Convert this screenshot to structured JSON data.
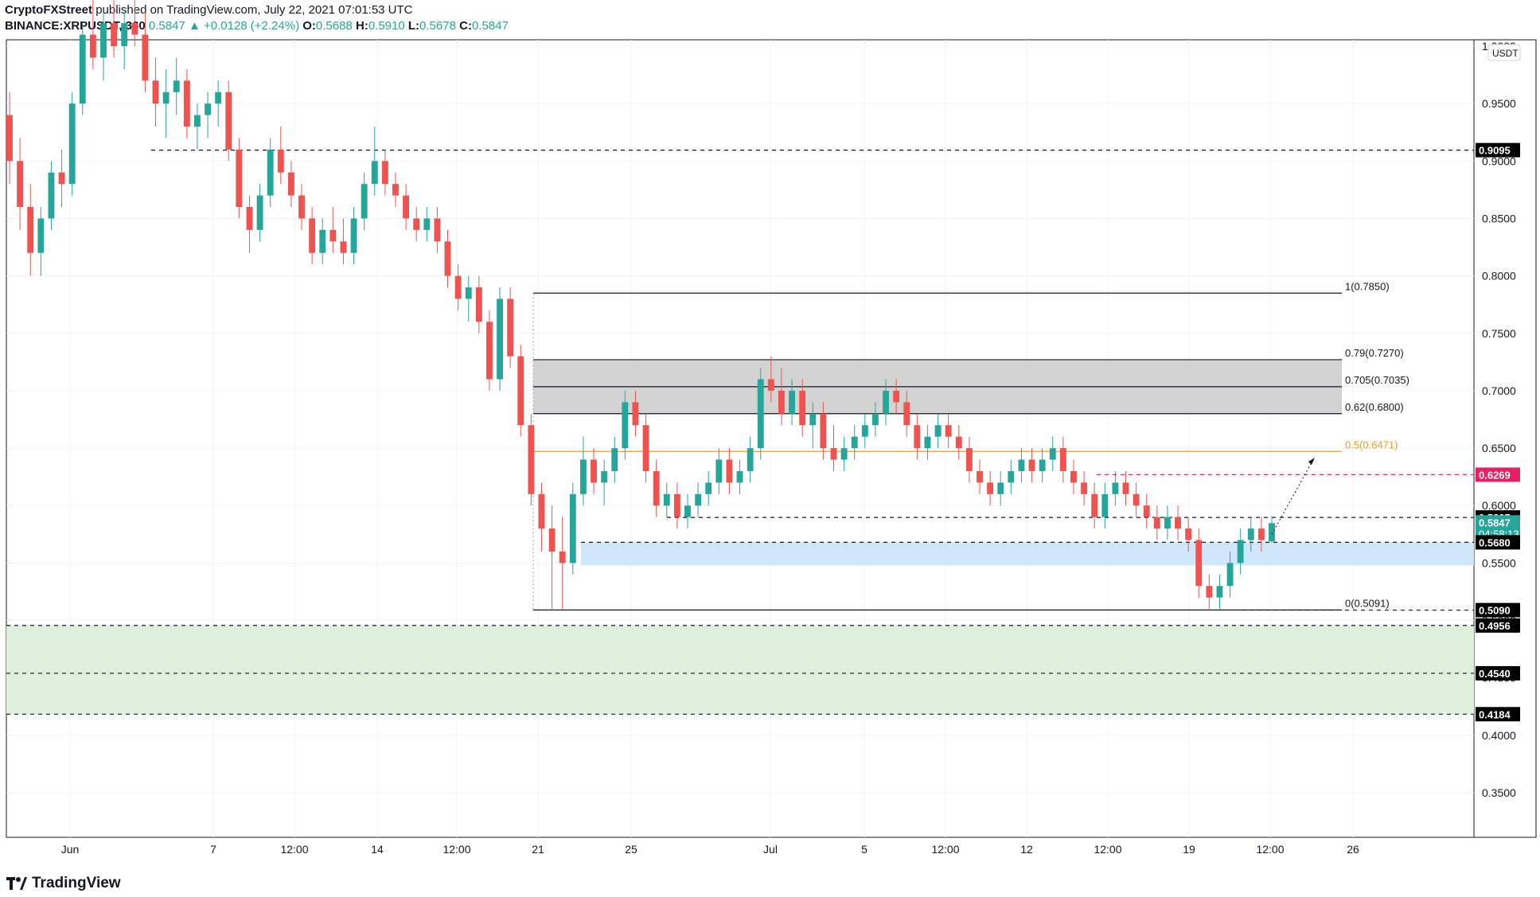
{
  "header": {
    "author": "CryptoFXStreet",
    "published": "published on TradingView.com, July 22, 2021 07:01:53 UTC",
    "symbol": "BINANCE:XRPUSDT, 360",
    "last": "0.5847",
    "change": "+0.0128 (+2.24%)",
    "o_label": "O:",
    "o_value": "0.5688",
    "h_label": "H:",
    "h_value": "0.5910",
    "l_label": "L:",
    "l_value": "0.5678",
    "c_label": "C:",
    "c_value": "0.5847"
  },
  "footer": {
    "brand": "TradingView"
  },
  "chart_data": {
    "type": "candlestick",
    "currency": "USDT",
    "ylim": [
      0.3,
      1.0
    ],
    "y_ticks": [
      "1.0000",
      "0.9500",
      "0.9000",
      "0.8500",
      "0.8000",
      "0.7500",
      "0.7000",
      "0.6500",
      "0.6000",
      "0.5500",
      "0.5000",
      "0.4500",
      "0.4000",
      "0.3500"
    ],
    "x_ticks": [
      "Jun",
      "7",
      "12:00",
      "14",
      "12:00",
      "21",
      "25",
      "Jul",
      "5",
      "12:00",
      "12",
      "12:00",
      "19",
      "12:00",
      "26"
    ],
    "fib_levels": [
      {
        "label": "1(0.7850)",
        "value": 0.785
      },
      {
        "label": "0.79(0.7270)",
        "value": 0.727
      },
      {
        "label": "0.705(0.7035)",
        "value": 0.7035
      },
      {
        "label": "0.62(0.6800)",
        "value": 0.68
      },
      {
        "label": "0.5(0.6471)",
        "value": 0.6471,
        "color": "#f59c1a"
      },
      {
        "label": "0(0.5091)",
        "value": 0.5091
      }
    ],
    "price_tags": [
      {
        "label": "0.9095",
        "value": 0.9095,
        "bg": "#000000"
      },
      {
        "label": "0.6269",
        "value": 0.6269,
        "bg": "#e91e63"
      },
      {
        "label": "0.5897",
        "value": 0.5897,
        "bg": "#000000"
      },
      {
        "label": "0.5847",
        "sub": "04:58:13",
        "value": 0.5847,
        "bg": "#26a69a"
      },
      {
        "label": "0.5680",
        "value": 0.568,
        "bg": "#000000"
      },
      {
        "label": "0.5090",
        "value": 0.509,
        "bg": "#000000"
      },
      {
        "label": "0.4956",
        "value": 0.4956,
        "bg": "#000000"
      },
      {
        "label": "0.4540",
        "value": 0.454,
        "bg": "#000000"
      },
      {
        "label": "0.4184",
        "value": 0.4184,
        "bg": "#000000"
      }
    ],
    "zones": [
      {
        "name": "resistance",
        "from": 0.68,
        "to": 0.727,
        "color": "#d3d3d3"
      },
      {
        "name": "demand",
        "from": 0.548,
        "to": 0.568,
        "color": "#cfe6fb"
      },
      {
        "name": "support",
        "from": 0.4184,
        "to": 0.4956,
        "color": "#dff0da"
      }
    ],
    "dashed_levels": [
      0.9095,
      0.6269,
      0.5897,
      0.568,
      0.509,
      0.4956,
      0.454,
      0.4184
    ],
    "colors": {
      "up": "#26a69a",
      "down": "#ef5350",
      "fib": "#131722",
      "fib_mid": "#f59c1a",
      "tag_dark": "#000000",
      "tag_red": "#e91e63",
      "tag_green": "#26a69a"
    },
    "candles": [
      [
        0.94,
        0.96,
        0.88,
        0.9
      ],
      [
        0.9,
        0.92,
        0.84,
        0.86
      ],
      [
        0.86,
        0.88,
        0.8,
        0.82
      ],
      [
        0.82,
        0.86,
        0.8,
        0.85
      ],
      [
        0.85,
        0.9,
        0.84,
        0.89
      ],
      [
        0.89,
        0.91,
        0.86,
        0.88
      ],
      [
        0.88,
        0.96,
        0.87,
        0.95
      ],
      [
        0.95,
        1.02,
        0.94,
        1.01
      ],
      [
        1.01,
        1.04,
        0.98,
        0.99
      ],
      [
        0.99,
        1.03,
        0.97,
        1.02
      ],
      [
        1.02,
        1.04,
        0.99,
        1.0
      ],
      [
        1.0,
        1.03,
        0.98,
        1.02
      ],
      [
        1.02,
        1.05,
        1.0,
        1.01
      ],
      [
        1.01,
        1.03,
        0.96,
        0.97
      ],
      [
        0.97,
        0.99,
        0.93,
        0.95
      ],
      [
        0.95,
        0.98,
        0.92,
        0.96
      ],
      [
        0.96,
        0.99,
        0.94,
        0.97
      ],
      [
        0.97,
        0.98,
        0.92,
        0.93
      ],
      [
        0.93,
        0.95,
        0.91,
        0.94
      ],
      [
        0.94,
        0.96,
        0.92,
        0.95
      ],
      [
        0.95,
        0.97,
        0.93,
        0.96
      ],
      [
        0.96,
        0.97,
        0.9,
        0.91
      ],
      [
        0.91,
        0.92,
        0.85,
        0.86
      ],
      [
        0.86,
        0.87,
        0.82,
        0.84
      ],
      [
        0.84,
        0.88,
        0.83,
        0.87
      ],
      [
        0.87,
        0.92,
        0.86,
        0.91
      ],
      [
        0.91,
        0.93,
        0.88,
        0.89
      ],
      [
        0.89,
        0.9,
        0.86,
        0.87
      ],
      [
        0.87,
        0.88,
        0.84,
        0.85
      ],
      [
        0.85,
        0.86,
        0.81,
        0.82
      ],
      [
        0.82,
        0.85,
        0.81,
        0.84
      ],
      [
        0.84,
        0.86,
        0.82,
        0.83
      ],
      [
        0.83,
        0.85,
        0.81,
        0.82
      ],
      [
        0.82,
        0.86,
        0.81,
        0.85
      ],
      [
        0.85,
        0.89,
        0.84,
        0.88
      ],
      [
        0.88,
        0.93,
        0.87,
        0.9
      ],
      [
        0.9,
        0.91,
        0.87,
        0.88
      ],
      [
        0.88,
        0.89,
        0.86,
        0.87
      ],
      [
        0.87,
        0.88,
        0.84,
        0.85
      ],
      [
        0.85,
        0.86,
        0.83,
        0.84
      ],
      [
        0.84,
        0.86,
        0.83,
        0.85
      ],
      [
        0.85,
        0.86,
        0.82,
        0.83
      ],
      [
        0.83,
        0.84,
        0.79,
        0.8
      ],
      [
        0.8,
        0.81,
        0.77,
        0.78
      ],
      [
        0.78,
        0.8,
        0.76,
        0.79
      ],
      [
        0.79,
        0.8,
        0.75,
        0.76
      ],
      [
        0.76,
        0.77,
        0.7,
        0.71
      ],
      [
        0.71,
        0.79,
        0.7,
        0.78
      ],
      [
        0.78,
        0.79,
        0.72,
        0.73
      ],
      [
        0.73,
        0.74,
        0.66,
        0.67
      ],
      [
        0.67,
        0.68,
        0.6,
        0.61
      ],
      [
        0.61,
        0.62,
        0.56,
        0.58
      ],
      [
        0.58,
        0.6,
        0.51,
        0.56
      ],
      [
        0.56,
        0.59,
        0.51,
        0.55
      ],
      [
        0.55,
        0.62,
        0.54,
        0.61
      ],
      [
        0.61,
        0.66,
        0.6,
        0.64
      ],
      [
        0.64,
        0.65,
        0.61,
        0.62
      ],
      [
        0.62,
        0.64,
        0.6,
        0.63
      ],
      [
        0.63,
        0.66,
        0.62,
        0.65
      ],
      [
        0.65,
        0.7,
        0.64,
        0.69
      ],
      [
        0.69,
        0.7,
        0.66,
        0.67
      ],
      [
        0.67,
        0.68,
        0.62,
        0.63
      ],
      [
        0.63,
        0.64,
        0.59,
        0.6
      ],
      [
        0.6,
        0.62,
        0.59,
        0.61
      ],
      [
        0.61,
        0.62,
        0.58,
        0.59
      ],
      [
        0.59,
        0.61,
        0.58,
        0.6
      ],
      [
        0.6,
        0.62,
        0.59,
        0.61
      ],
      [
        0.61,
        0.63,
        0.6,
        0.62
      ],
      [
        0.62,
        0.65,
        0.61,
        0.64
      ],
      [
        0.64,
        0.65,
        0.61,
        0.62
      ],
      [
        0.62,
        0.64,
        0.61,
        0.63
      ],
      [
        0.63,
        0.66,
        0.62,
        0.65
      ],
      [
        0.65,
        0.72,
        0.64,
        0.71
      ],
      [
        0.71,
        0.73,
        0.69,
        0.7
      ],
      [
        0.7,
        0.72,
        0.67,
        0.68
      ],
      [
        0.68,
        0.71,
        0.67,
        0.7
      ],
      [
        0.7,
        0.71,
        0.66,
        0.67
      ],
      [
        0.67,
        0.69,
        0.65,
        0.68
      ],
      [
        0.68,
        0.69,
        0.64,
        0.65
      ],
      [
        0.65,
        0.67,
        0.63,
        0.64
      ],
      [
        0.64,
        0.66,
        0.63,
        0.65
      ],
      [
        0.65,
        0.67,
        0.64,
        0.66
      ],
      [
        0.66,
        0.68,
        0.65,
        0.67
      ],
      [
        0.67,
        0.69,
        0.66,
        0.68
      ],
      [
        0.68,
        0.71,
        0.67,
        0.7
      ],
      [
        0.7,
        0.71,
        0.68,
        0.69
      ],
      [
        0.69,
        0.7,
        0.66,
        0.67
      ],
      [
        0.67,
        0.68,
        0.64,
        0.65
      ],
      [
        0.65,
        0.67,
        0.64,
        0.66
      ],
      [
        0.66,
        0.68,
        0.65,
        0.67
      ],
      [
        0.67,
        0.68,
        0.65,
        0.66
      ],
      [
        0.66,
        0.67,
        0.64,
        0.65
      ],
      [
        0.65,
        0.66,
        0.62,
        0.63
      ],
      [
        0.63,
        0.64,
        0.61,
        0.62
      ],
      [
        0.62,
        0.63,
        0.6,
        0.61
      ],
      [
        0.61,
        0.63,
        0.6,
        0.62
      ],
      [
        0.62,
        0.64,
        0.61,
        0.63
      ],
      [
        0.63,
        0.65,
        0.62,
        0.64
      ],
      [
        0.64,
        0.65,
        0.62,
        0.63
      ],
      [
        0.63,
        0.65,
        0.62,
        0.64
      ],
      [
        0.64,
        0.66,
        0.63,
        0.65
      ],
      [
        0.65,
        0.66,
        0.62,
        0.63
      ],
      [
        0.63,
        0.64,
        0.61,
        0.62
      ],
      [
        0.62,
        0.63,
        0.6,
        0.61
      ],
      [
        0.61,
        0.62,
        0.58,
        0.59
      ],
      [
        0.59,
        0.62,
        0.58,
        0.61
      ],
      [
        0.61,
        0.63,
        0.6,
        0.62
      ],
      [
        0.62,
        0.63,
        0.6,
        0.61
      ],
      [
        0.61,
        0.62,
        0.59,
        0.6
      ],
      [
        0.6,
        0.61,
        0.58,
        0.59
      ],
      [
        0.59,
        0.6,
        0.57,
        0.58
      ],
      [
        0.58,
        0.6,
        0.57,
        0.59
      ],
      [
        0.59,
        0.6,
        0.57,
        0.58
      ],
      [
        0.58,
        0.59,
        0.56,
        0.57
      ],
      [
        0.57,
        0.58,
        0.52,
        0.53
      ],
      [
        0.53,
        0.54,
        0.51,
        0.52
      ],
      [
        0.52,
        0.54,
        0.51,
        0.53
      ],
      [
        0.53,
        0.56,
        0.52,
        0.55
      ],
      [
        0.55,
        0.58,
        0.54,
        0.57
      ],
      [
        0.57,
        0.59,
        0.56,
        0.58
      ],
      [
        0.58,
        0.59,
        0.56,
        0.57
      ],
      [
        0.5688,
        0.591,
        0.5678,
        0.5847
      ]
    ]
  }
}
